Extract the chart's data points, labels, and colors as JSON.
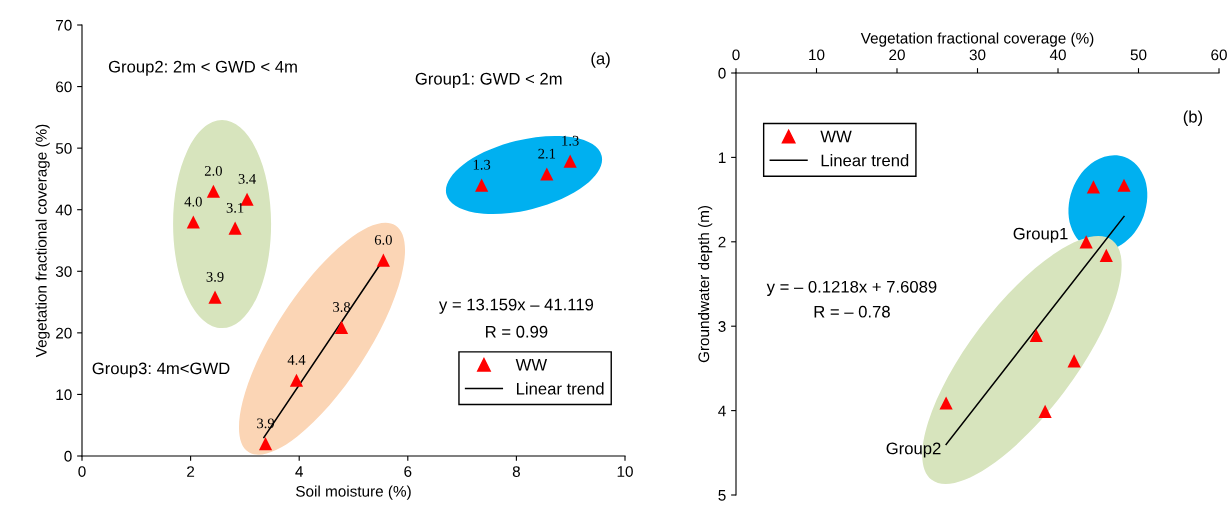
{
  "chart_data": [
    {
      "type": "scatter",
      "xlabel": "Soil moisture (%)",
      "ylabel": "Vegetation fractional coverage (%)",
      "xlim": [
        0,
        10
      ],
      "xticks": [
        0,
        2,
        4,
        6,
        8,
        10
      ],
      "ylim": [
        0,
        70
      ],
      "yticks": [
        0,
        10,
        20,
        30,
        40,
        50,
        60,
        70
      ],
      "grid": false,
      "legend": "bottom right",
      "annotations": [
        "(a)",
        "Group2: 2m < GWD < 4m",
        "Group1: GWD < 2m",
        "Group3: 4m<GWD",
        "y = 13.159x – 41.119",
        "R = 0.99",
        {
          "text": "3.9",
          "x": 3.38,
          "y": 2.0
        },
        {
          "text": "4.4",
          "x": 3.95,
          "y": 12.3
        },
        {
          "text": "3.8",
          "x": 4.78,
          "y": 20.9
        },
        {
          "text": "6.0",
          "x": 5.55,
          "y": 31.8
        },
        {
          "text": "2.0",
          "x": 2.42,
          "y": 43.0
        },
        {
          "text": "3.4",
          "x": 3.04,
          "y": 41.7
        },
        {
          "text": "4.0",
          "x": 2.05,
          "y": 38.0
        },
        {
          "text": "3.1",
          "x": 2.82,
          "y": 37.0
        },
        {
          "text": "3.9",
          "x": 2.45,
          "y": 25.8
        },
        {
          "text": "1.3",
          "x": 7.36,
          "y": 44.0
        },
        {
          "text": "2.1",
          "x": 8.56,
          "y": 45.8
        },
        {
          "text": "1.3",
          "x": 8.99,
          "y": 47.9
        }
      ],
      "series": [
        {
          "name": "WW",
          "color": "#ff0000",
          "marker": "triangle",
          "x": [
            3.38,
            3.95,
            4.78,
            5.55,
            2.42,
            3.04,
            2.05,
            2.82,
            2.45,
            7.36,
            8.56,
            8.99
          ],
          "values": [
            2.0,
            12.3,
            20.9,
            31.8,
            43.0,
            41.7,
            38.0,
            37.0,
            25.8,
            44.0,
            45.8,
            47.9
          ]
        },
        {
          "name": "Linear trend",
          "type": "line",
          "color": "#000000",
          "line_style": "solid",
          "x": [
            3.35,
            5.55
          ],
          "values": [
            3.0,
            31.9
          ]
        }
      ]
    },
    {
      "type": "scatter",
      "xlabel": "Vegetation fractional coverage (%)",
      "ylabel": "Groundwater depth (m)",
      "xlim": [
        0,
        60
      ],
      "xticks": [
        0,
        10,
        20,
        30,
        40,
        50,
        60
      ],
      "ylim": [
        5,
        0
      ],
      "yticks": [
        0,
        1,
        2,
        3,
        4,
        5
      ],
      "grid": false,
      "legend": "top left",
      "annotations": [
        "(b)",
        "Group1",
        "Group2",
        "y = – 0.1218x + 7.6089",
        "R = – 0.78"
      ],
      "series": [
        {
          "name": "WW",
          "color": "#ff0000",
          "marker": "triangle",
          "x": [
            44.4,
            48.2,
            43.5,
            46.0,
            37.3,
            42.0,
            26.1,
            38.4
          ],
          "values": [
            1.35,
            1.33,
            2.0,
            2.16,
            3.11,
            3.41,
            3.91,
            4.01
          ]
        },
        {
          "name": "Linear trend",
          "type": "line",
          "color": "#000000",
          "line_style": "solid",
          "x": [
            26.1,
            48.2
          ],
          "values": [
            4.4,
            1.7
          ]
        }
      ]
    }
  ]
}
